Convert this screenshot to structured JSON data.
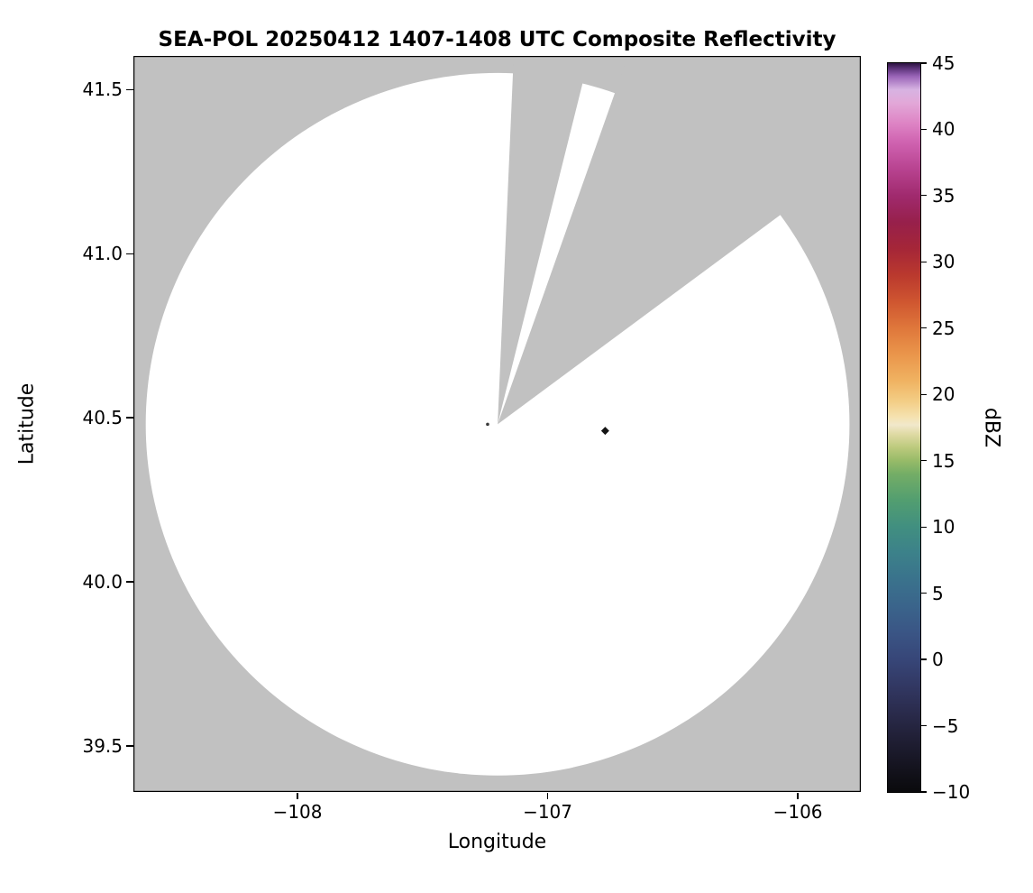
{
  "chart_data": {
    "type": "heatmap",
    "subtype": "radar-composite-reflectivity-map",
    "title": "SEA-POL 20250412 1407-1408 UTC Composite Reflectivity",
    "xlabel": "Longitude",
    "ylabel": "Latitude",
    "xlim": [
      -108.656,
      -105.748
    ],
    "ylim": [
      39.36,
      41.602
    ],
    "x_ticks": [
      -108,
      -107,
      -106
    ],
    "x_tick_labels": [
      "−108",
      "−107",
      "−106"
    ],
    "y_ticks": [
      41.5,
      41.0,
      40.5,
      40.0,
      39.5
    ],
    "y_tick_labels": [
      "41.5",
      "41.0",
      "40.5",
      "40.0",
      "39.5"
    ],
    "background_color": "#c1c1c1",
    "coverage_color": "#ffffff",
    "coverage": {
      "description": "white circular radar coverage area (no echo), gray = no data",
      "center_lon": -107.2,
      "center_lat": 40.48,
      "radius_deg_lat": 1.07,
      "missing_sectors_deg": [
        [
          2.5,
          14.0
        ],
        [
          19.5,
          53.5
        ]
      ]
    },
    "echoes": [
      {
        "lon": -107.24,
        "lat": 40.48,
        "shape": "speck",
        "color": "#3a3a3a"
      },
      {
        "lon": -106.77,
        "lat": 40.46,
        "shape": "diamond",
        "color": "#141414"
      }
    ],
    "colorbar": {
      "label": "dBZ",
      "min": -10,
      "max": 45,
      "ticks": [
        45,
        40,
        35,
        30,
        25,
        20,
        15,
        10,
        5,
        0,
        -5,
        -10
      ],
      "tick_labels": [
        "45",
        "40",
        "35",
        "30",
        "25",
        "20",
        "15",
        "10",
        "5",
        "0",
        "−5",
        "−10"
      ],
      "stops": [
        {
          "v": -10,
          "c": "#0a0a0c"
        },
        {
          "v": -8,
          "c": "#151420"
        },
        {
          "v": -6,
          "c": "#201f35"
        },
        {
          "v": -4,
          "c": "#2a2b4c"
        },
        {
          "v": -2,
          "c": "#323863"
        },
        {
          "v": 0,
          "c": "#374678"
        },
        {
          "v": 2,
          "c": "#3a5585"
        },
        {
          "v": 4,
          "c": "#3a648b"
        },
        {
          "v": 6,
          "c": "#3a728c"
        },
        {
          "v": 8,
          "c": "#3c818a"
        },
        {
          "v": 10,
          "c": "#418f80"
        },
        {
          "v": 12,
          "c": "#529e70"
        },
        {
          "v": 14,
          "c": "#74ad66"
        },
        {
          "v": 15,
          "c": "#97bb68"
        },
        {
          "v": 16,
          "c": "#bcca7d"
        },
        {
          "v": 17,
          "c": "#dfdaa4"
        },
        {
          "v": 17.7,
          "c": "#f1e8cb"
        },
        {
          "v": 18.3,
          "c": "#f5e2b0"
        },
        {
          "v": 19.5,
          "c": "#f3cd85"
        },
        {
          "v": 21,
          "c": "#f0b362"
        },
        {
          "v": 23,
          "c": "#ea964b"
        },
        {
          "v": 25,
          "c": "#df773b"
        },
        {
          "v": 27,
          "c": "#cf5630"
        },
        {
          "v": 29,
          "c": "#ba392e"
        },
        {
          "v": 31,
          "c": "#a52638"
        },
        {
          "v": 33,
          "c": "#97204b"
        },
        {
          "v": 35,
          "c": "#a02a6e"
        },
        {
          "v": 37,
          "c": "#b84390"
        },
        {
          "v": 39,
          "c": "#cf62b0"
        },
        {
          "v": 40.5,
          "c": "#de85c5"
        },
        {
          "v": 42,
          "c": "#e2a8d8"
        },
        {
          "v": 43,
          "c": "#d7b3e2"
        },
        {
          "v": 44,
          "c": "#9a64b8"
        },
        {
          "v": 44.6,
          "c": "#5c3379"
        },
        {
          "v": 45,
          "c": "#2c1240"
        }
      ]
    }
  }
}
